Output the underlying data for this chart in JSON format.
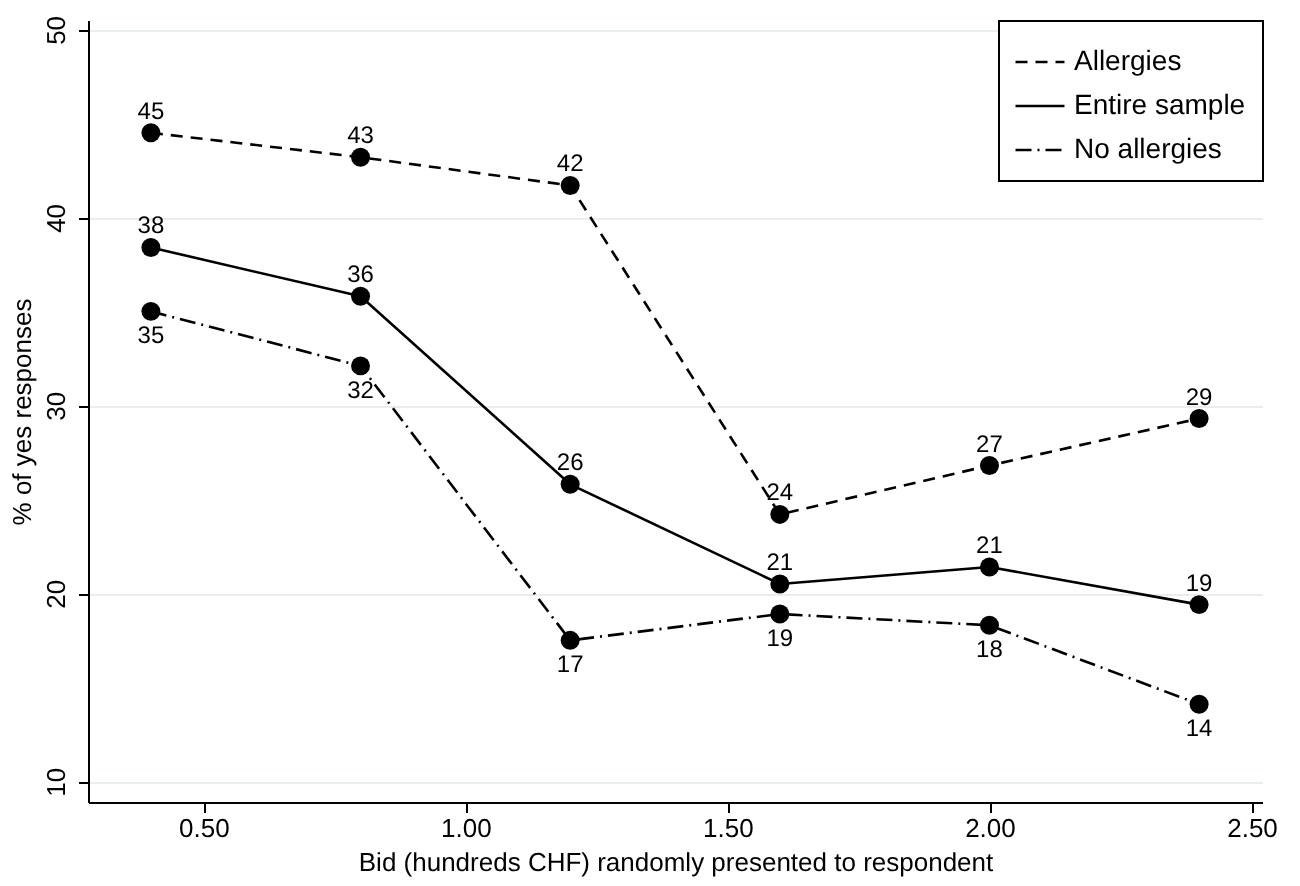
{
  "chart_data": {
    "type": "line",
    "xlabel": "Bid (hundreds CHF) randomly presented to respondent",
    "ylabel": "% of yes responses",
    "x": [
      0.4,
      0.8,
      1.2,
      1.6,
      2.0,
      2.4
    ],
    "series": [
      {
        "name": "Allergies",
        "color": "#000000",
        "line_style": "dashed",
        "values": [
          44.5,
          43.2,
          41.7,
          24.2,
          26.8,
          29.3
        ],
        "value_labels": [
          "45",
          "43",
          "42",
          "24",
          "27",
          "29"
        ]
      },
      {
        "name": "Entire sample",
        "color": "#000000",
        "line_style": "solid",
        "values": [
          38.4,
          35.8,
          25.8,
          20.5,
          21.4,
          19.4
        ],
        "value_labels": [
          "38",
          "36",
          "26",
          "21",
          "21",
          "19"
        ]
      },
      {
        "name": "No allergies",
        "color": "#000000",
        "line_style": "dashdot",
        "values": [
          35.0,
          32.1,
          17.5,
          18.9,
          18.3,
          14.1
        ],
        "value_labels": [
          "35",
          "32",
          "17",
          "19",
          "18",
          "14"
        ]
      }
    ],
    "xlim": [
      0.28,
      2.52
    ],
    "ylim": [
      8.9,
      50.5
    ],
    "xticks": [
      {
        "value": 0.5,
        "label": "0.50"
      },
      {
        "value": 1.0,
        "label": "1.00"
      },
      {
        "value": 1.5,
        "label": "1.50"
      },
      {
        "value": 2.0,
        "label": "2.00"
      },
      {
        "value": 2.5,
        "label": "2.50"
      }
    ],
    "yticks": [
      10,
      20,
      30,
      40,
      50
    ],
    "grid": "y",
    "legend": "top right",
    "marker": "circle"
  }
}
